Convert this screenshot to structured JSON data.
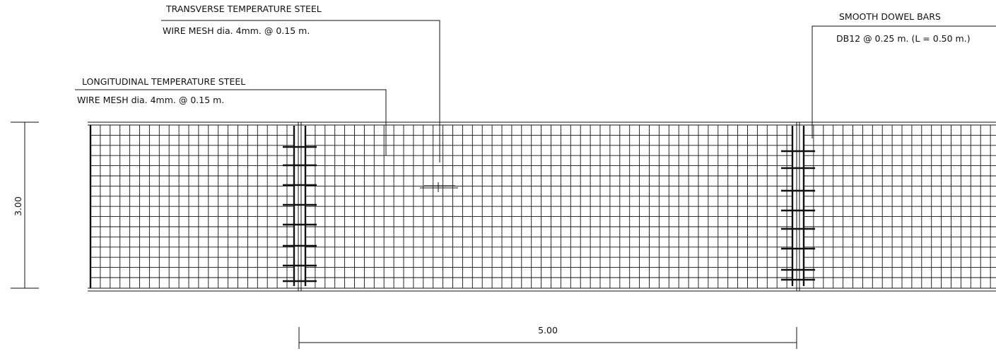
{
  "callouts": {
    "transverse": {
      "title": "TRANSVERSE TEMPERATURE STEEL",
      "spec": "WIRE MESH dia. 4mm. @ 0.15 m."
    },
    "longitudinal": {
      "title": "LONGITUDINAL TEMPERATURE STEEL",
      "spec": "WIRE MESH dia. 4mm. @ 0.15 m."
    },
    "dowel": {
      "title": "SMOOTH DOWEL BARS",
      "spec": "DB12 @ 0.25 m. (L = 0.50 m.)"
    }
  },
  "dimensions": {
    "slab_width": "3.00",
    "slab_length": "5.00"
  },
  "colors": {
    "line": "#111111",
    "background": "#ffffff"
  }
}
